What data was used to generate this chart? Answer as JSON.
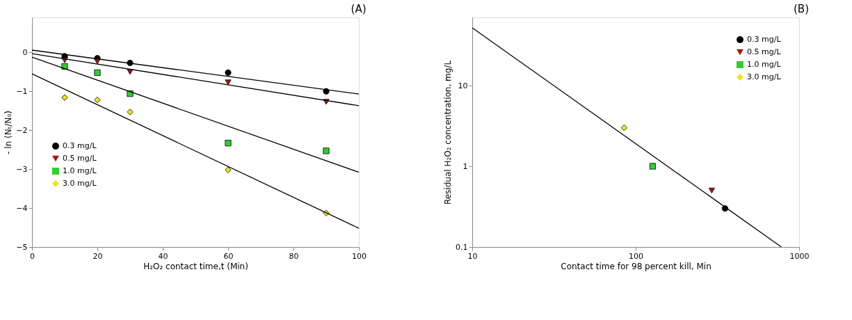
{
  "chart_data": [
    {
      "type": "scatter",
      "title": "(A)",
      "xlabel": "H₂O₂ contact time,t (Min)",
      "ylabel": "- ln (Nₜ/N₀)",
      "xlim": [
        0,
        100
      ],
      "xticks": [
        0,
        20,
        40,
        60,
        80,
        100
      ],
      "ylim": [
        -5,
        0.9
      ],
      "yticks": [
        -5,
        -4,
        -3,
        -2,
        -1,
        0
      ],
      "grid": false,
      "legend": "left",
      "x": [
        10,
        20,
        30,
        60,
        90
      ],
      "series": [
        {
          "name": "0.3 mg/L",
          "color": "#000000",
          "marker": "circle",
          "values": [
            -0.1,
            -0.15,
            -0.27,
            -0.52,
            -1.0
          ]
        },
        {
          "name": "0.5 mg/L",
          "color": "#a01818",
          "marker": "triangle",
          "values": [
            -0.2,
            -0.23,
            -0.5,
            -0.77,
            -1.27
          ]
        },
        {
          "name": "1.0 mg/L",
          "color": "#33cc33",
          "marker": "square",
          "values": [
            -0.36,
            -0.52,
            -1.06,
            -2.33,
            -2.53
          ]
        },
        {
          "name": "3.0 mg/L",
          "color": "#e8e820",
          "marker": "diamond",
          "values": [
            -1.16,
            -1.22,
            -1.53,
            -3.02,
            -4.13
          ]
        },
        {
          "type": "line",
          "color": "#000000",
          "x": [
            0,
            100
          ],
          "values": [
            0.06,
            -1.07
          ]
        },
        {
          "type": "line",
          "color": "#000000",
          "x": [
            0,
            100
          ],
          "values": [
            -0.03,
            -1.37
          ]
        },
        {
          "type": "line",
          "color": "#000000",
          "x": [
            0,
            100
          ],
          "values": [
            -0.12,
            -3.08
          ]
        },
        {
          "type": "line",
          "color": "#000000",
          "x": [
            0,
            100
          ],
          "values": [
            -0.55,
            -4.52
          ]
        }
      ]
    },
    {
      "type": "scatter",
      "title": "(B)",
      "xlabel": "Contact time for 98 percent kill, Min",
      "ylabel": "Residual H₂O₂ concentration, mg/L",
      "log": "xy",
      "xlim": [
        10,
        1000
      ],
      "xticks": [
        10,
        100,
        1000
      ],
      "ylim": [
        0.1,
        70
      ],
      "yticks": [
        0.1,
        1,
        10
      ],
      "grid": false,
      "legend": "top right",
      "series": [
        {
          "name": "0.3 mg/L",
          "color": "#000000",
          "marker": "circle",
          "x": [
            352
          ],
          "values": [
            0.3
          ]
        },
        {
          "name": "0.5 mg/L",
          "color": "#a01818",
          "marker": "triangle",
          "x": [
            292
          ],
          "values": [
            0.5
          ]
        },
        {
          "name": "1.0 mg/L",
          "color": "#33cc33",
          "marker": "square",
          "x": [
            127
          ],
          "values": [
            1.0
          ]
        },
        {
          "name": "3.0 mg/L",
          "color": "#e8e820",
          "marker": "diamond",
          "x": [
            85
          ],
          "values": [
            3.0
          ]
        },
        {
          "type": "line",
          "color": "#000000",
          "x": [
            10,
            778
          ],
          "values": [
            52,
            0.1
          ]
        }
      ]
    }
  ]
}
